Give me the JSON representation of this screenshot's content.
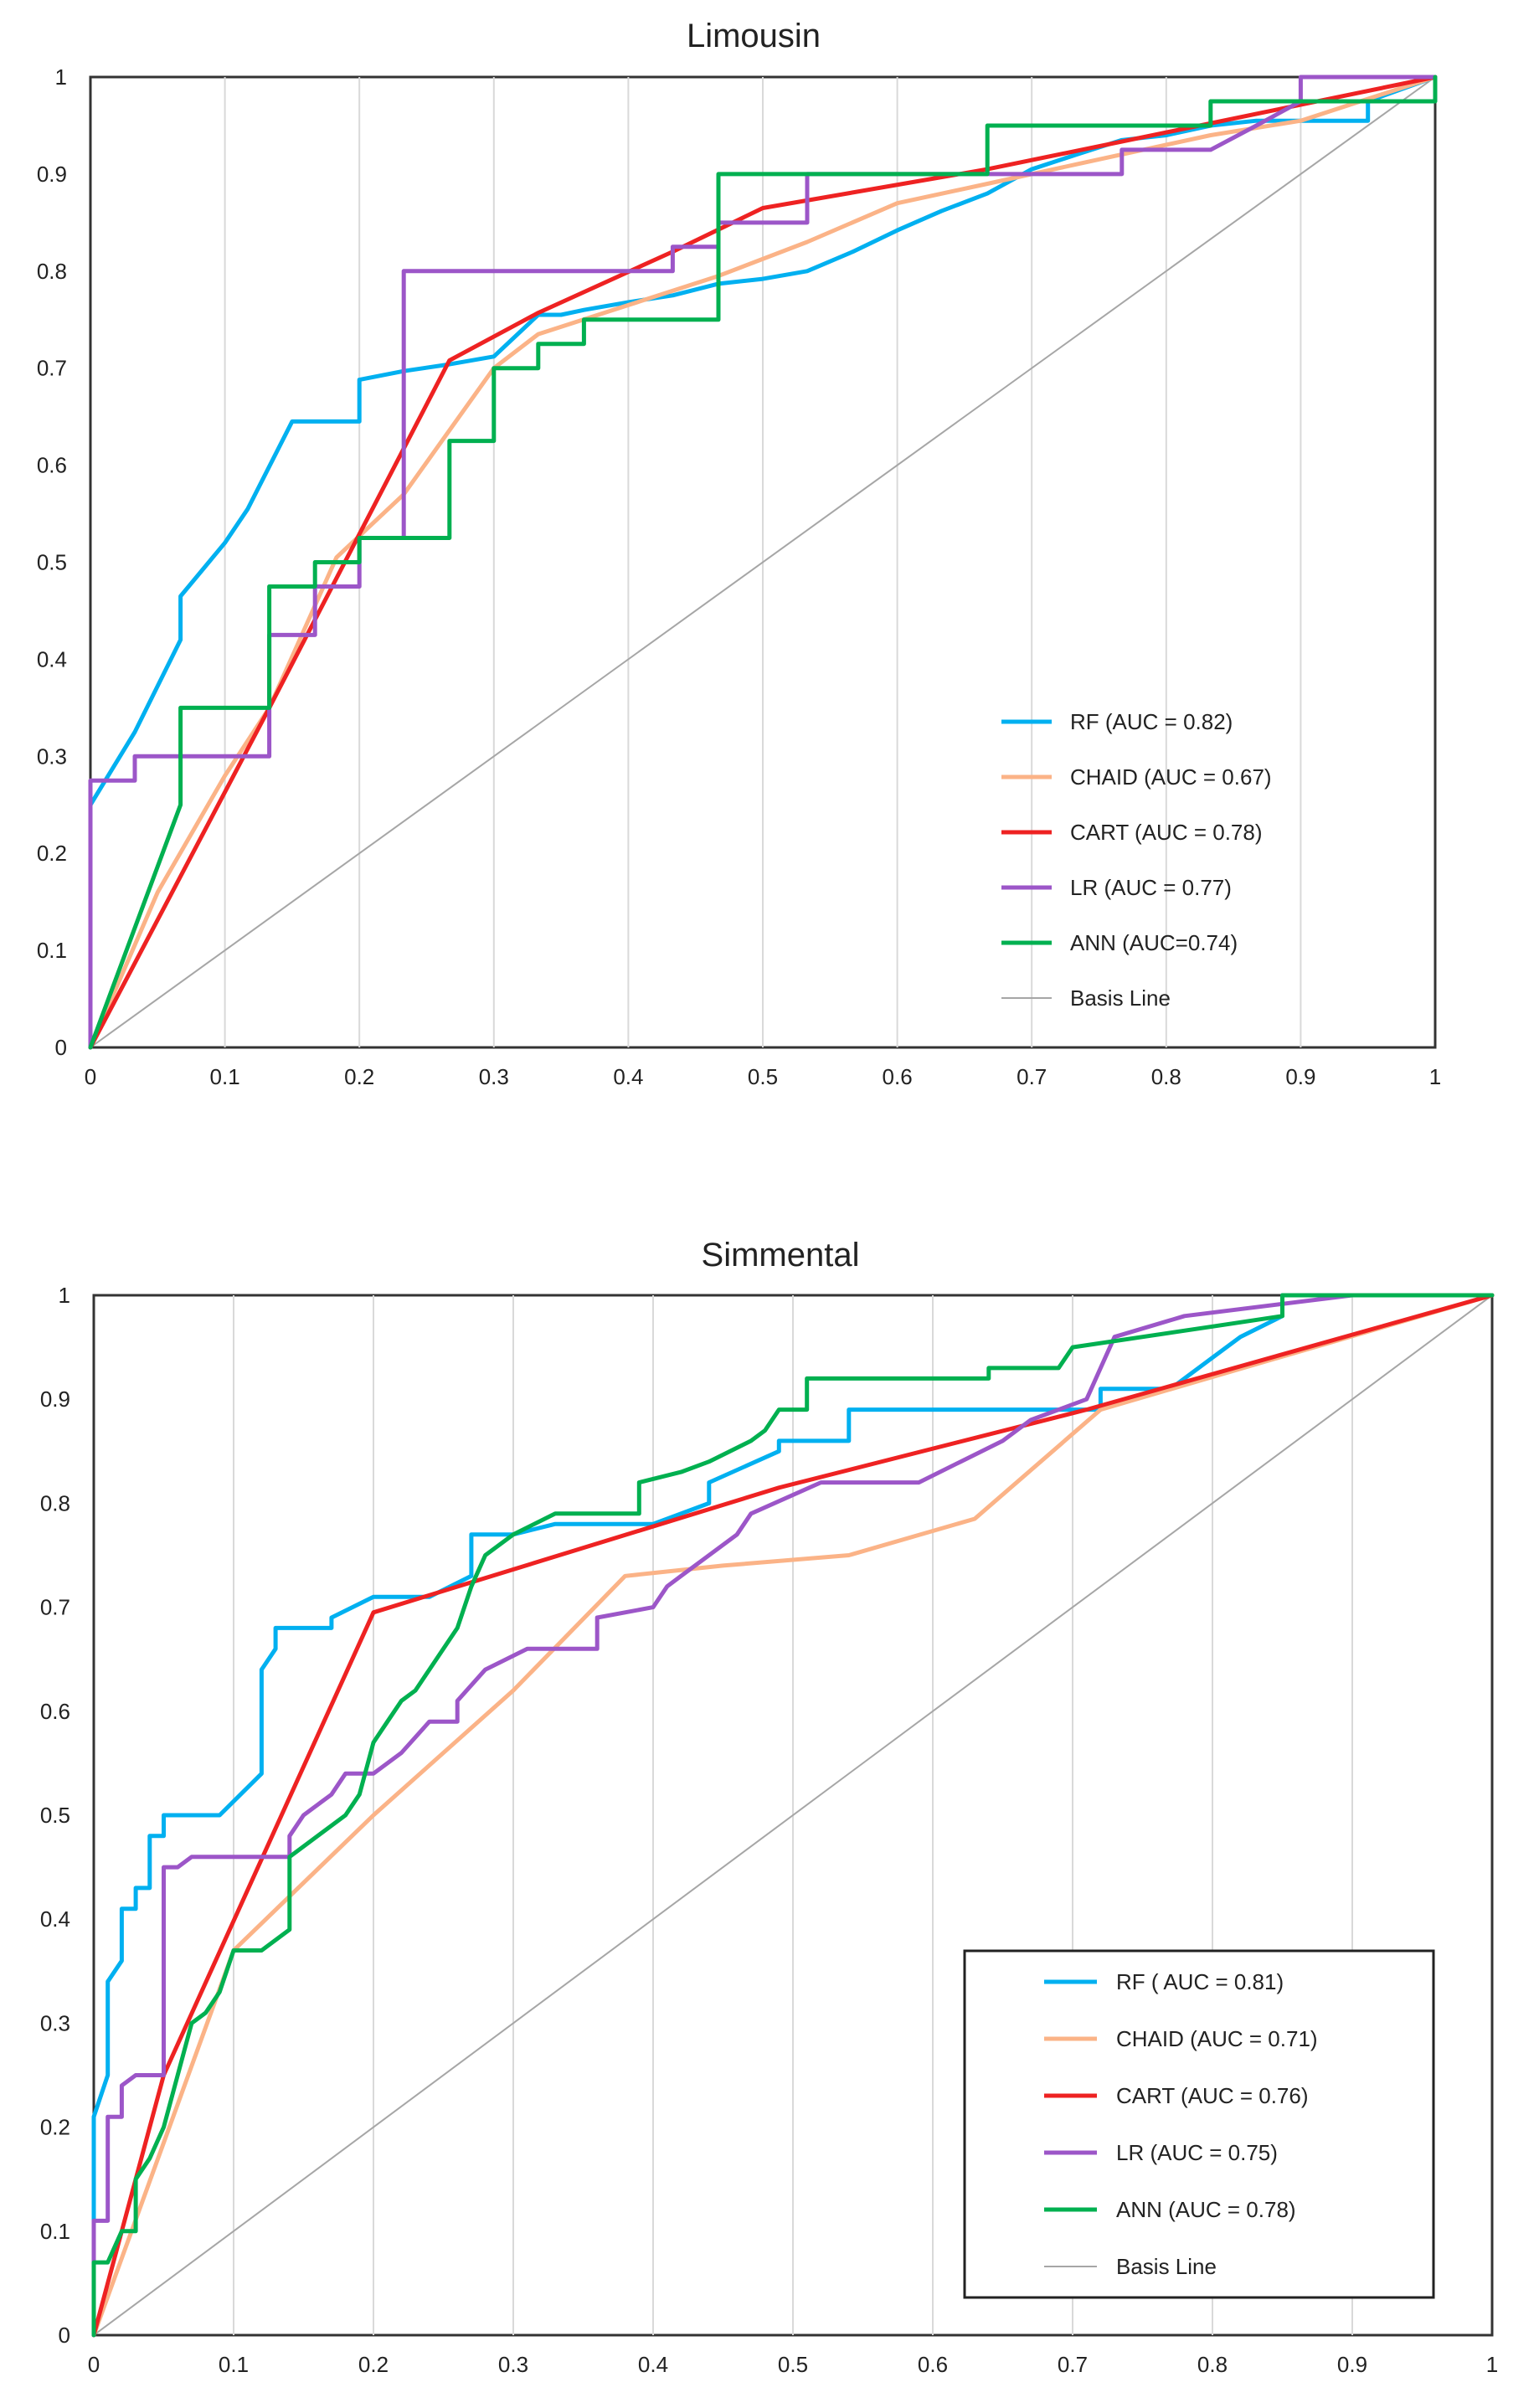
{
  "chart_data": [
    {
      "type": "line",
      "title": "Limousin",
      "xlim": [
        0,
        1
      ],
      "ylim": [
        0,
        1
      ],
      "grid": true,
      "legend_position": "bottom-right",
      "legend_box": false,
      "x_ticks": [
        "0",
        "0.1",
        "0.2",
        "0.3",
        "0.4",
        "0.5",
        "0.6",
        "0.7",
        "0.8",
        "0.9",
        "1"
      ],
      "y_ticks": [
        "0",
        "0.1",
        "0.2",
        "0.3",
        "0.4",
        "0.5",
        "0.6",
        "0.7",
        "0.8",
        "0.9",
        "1"
      ],
      "series": [
        {
          "name": "RF (AUC = 0.82)",
          "color": "#00b0f0",
          "x": [
            0,
            0,
            0.033,
            0.067,
            0.067,
            0.1,
            0.117,
            0.15,
            0.167,
            0.2,
            0.2,
            0.233,
            0.267,
            0.3,
            0.333,
            0.35,
            0.367,
            0.4,
            0.433,
            0.467,
            0.5,
            0.533,
            0.567,
            0.6,
            0.633,
            0.667,
            0.7,
            0.733,
            0.767,
            0.8,
            0.833,
            0.867,
            0.9,
            0.933,
            0.95,
            0.95,
            1
          ],
          "y": [
            0,
            0.25,
            0.325,
            0.42,
            0.465,
            0.52,
            0.555,
            0.645,
            0.645,
            0.645,
            0.688,
            0.697,
            0.704,
            0.712,
            0.755,
            0.755,
            0.76,
            0.768,
            0.775,
            0.787,
            0.792,
            0.8,
            0.82,
            0.842,
            0.862,
            0.88,
            0.905,
            0.92,
            0.935,
            0.94,
            0.95,
            0.955,
            0.955,
            0.955,
            0.955,
            0.975,
            1
          ]
        },
        {
          "name": "CHAID (AUC = 0.67)",
          "color": "#fbb387",
          "x": [
            0,
            0.05,
            0.1,
            0.133,
            0.183,
            0.233,
            0.3,
            0.333,
            0.4,
            0.467,
            0.533,
            0.6,
            0.667,
            0.733,
            0.833,
            0.9,
            1
          ],
          "y": [
            0,
            0.16,
            0.28,
            0.35,
            0.505,
            0.57,
            0.7,
            0.735,
            0.765,
            0.795,
            0.83,
            0.87,
            0.89,
            0.91,
            0.94,
            0.955,
            1
          ]
        },
        {
          "name": "CART (AUC = 0.78)",
          "color": "#ee2222",
          "x": [
            0,
            0.133,
            0.267,
            0.333,
            0.433,
            0.5,
            0.667,
            1
          ],
          "y": [
            0,
            0.35,
            0.708,
            0.757,
            0.82,
            0.865,
            0.905,
            1
          ]
        },
        {
          "name": "LR (AUC = 0.77)",
          "color": "#9c56c8",
          "x": [
            0,
            0,
            0.033,
            0.033,
            0.133,
            0.133,
            0.167,
            0.167,
            0.2,
            0.2,
            0.233,
            0.233,
            0.433,
            0.433,
            0.467,
            0.467,
            0.533,
            0.533,
            0.7,
            0.767,
            0.767,
            0.833,
            0.867,
            0.9,
            0.9,
            1
          ],
          "y": [
            0,
            0.275,
            0.275,
            0.3,
            0.3,
            0.425,
            0.425,
            0.475,
            0.475,
            0.525,
            0.525,
            0.8,
            0.8,
            0.825,
            0.825,
            0.85,
            0.85,
            0.9,
            0.9,
            0.9,
            0.925,
            0.925,
            0.95,
            0.975,
            1,
            1
          ]
        },
        {
          "name": "ANN (AUC=0.74)",
          "color": "#00b050",
          "x": [
            0,
            0.067,
            0.067,
            0.133,
            0.133,
            0.167,
            0.167,
            0.2,
            0.2,
            0.267,
            0.267,
            0.3,
            0.3,
            0.333,
            0.333,
            0.367,
            0.367,
            0.467,
            0.467,
            0.667,
            0.667,
            0.833,
            0.833,
            1,
            1
          ],
          "y": [
            0,
            0.25,
            0.35,
            0.35,
            0.475,
            0.475,
            0.5,
            0.5,
            0.525,
            0.525,
            0.625,
            0.625,
            0.7,
            0.7,
            0.725,
            0.725,
            0.75,
            0.75,
            0.9,
            0.9,
            0.95,
            0.95,
            0.975,
            0.975,
            1
          ]
        },
        {
          "name": "Basis Line",
          "color": "#a6a6a6",
          "x": [
            0,
            1
          ],
          "y": [
            0,
            1
          ]
        }
      ]
    },
    {
      "type": "line",
      "title": "Simmental",
      "xlim": [
        0,
        1
      ],
      "ylim": [
        0,
        1
      ],
      "grid": true,
      "legend_position": "bottom-right",
      "legend_box": true,
      "x_ticks": [
        "0",
        "0.1",
        "0.2",
        "0.3",
        "0.4",
        "0.5",
        "0.6",
        "0.7",
        "0.8",
        "0.9",
        "1"
      ],
      "y_ticks": [
        "0",
        "0.1",
        "0.2",
        "0.3",
        "0.4",
        "0.5",
        "0.6",
        "0.7",
        "0.8",
        "0.9",
        "1"
      ],
      "series": [
        {
          "name": "RF ( AUC = 0.81)",
          "color": "#00b0f0",
          "x": [
            0,
            0,
            0.01,
            0.01,
            0.02,
            0.02,
            0.03,
            0.03,
            0.04,
            0.04,
            0.05,
            0.05,
            0.06,
            0.06,
            0.07,
            0.09,
            0.12,
            0.12,
            0.13,
            0.13,
            0.17,
            0.17,
            0.2,
            0.24,
            0.27,
            0.27,
            0.3,
            0.33,
            0.36,
            0.4,
            0.44,
            0.44,
            0.49,
            0.49,
            0.54,
            0.54,
            0.66,
            0.66,
            0.72,
            0.72,
            0.77,
            0.8,
            0.82,
            0.85,
            0.85,
            1
          ],
          "y": [
            0,
            0.21,
            0.25,
            0.34,
            0.36,
            0.41,
            0.41,
            0.43,
            0.43,
            0.48,
            0.48,
            0.5,
            0.5,
            0.5,
            0.5,
            0.5,
            0.54,
            0.64,
            0.66,
            0.68,
            0.68,
            0.69,
            0.71,
            0.71,
            0.73,
            0.77,
            0.77,
            0.78,
            0.78,
            0.78,
            0.8,
            0.82,
            0.85,
            0.86,
            0.86,
            0.89,
            0.89,
            0.89,
            0.89,
            0.91,
            0.91,
            0.94,
            0.96,
            0.98,
            1,
            1
          ]
        },
        {
          "name": "CHAID (AUC = 0.71)",
          "color": "#fbb387",
          "x": [
            0,
            0.1,
            0.2,
            0.3,
            0.38,
            0.45,
            0.54,
            0.63,
            0.72,
            1
          ],
          "y": [
            0,
            0.37,
            0.5,
            0.62,
            0.73,
            0.74,
            0.75,
            0.785,
            0.89,
            1
          ]
        },
        {
          "name": "CART (AUC = 0.76)",
          "color": "#ee2222",
          "x": [
            0,
            0.05,
            0.2,
            0.49,
            0.71,
            1
          ],
          "y": [
            0,
            0.25,
            0.695,
            0.815,
            0.89,
            1
          ]
        },
        {
          "name": "LR (AUC = 0.75)",
          "color": "#9c56c8",
          "x": [
            0,
            0,
            0.01,
            0.01,
            0.02,
            0.02,
            0.03,
            0.05,
            0.05,
            0.06,
            0.07,
            0.14,
            0.14,
            0.15,
            0.16,
            0.17,
            0.18,
            0.2,
            0.21,
            0.22,
            0.24,
            0.26,
            0.26,
            0.28,
            0.31,
            0.36,
            0.36,
            0.4,
            0.41,
            0.42,
            0.46,
            0.47,
            0.52,
            0.59,
            0.62,
            0.65,
            0.67,
            0.71,
            0.72,
            0.73,
            0.78,
            0.9
          ],
          "y": [
            0,
            0.11,
            0.11,
            0.21,
            0.21,
            0.24,
            0.25,
            0.25,
            0.45,
            0.45,
            0.46,
            0.46,
            0.48,
            0.5,
            0.51,
            0.52,
            0.54,
            0.54,
            0.55,
            0.56,
            0.59,
            0.59,
            0.61,
            0.64,
            0.66,
            0.66,
            0.69,
            0.7,
            0.72,
            0.73,
            0.77,
            0.79,
            0.82,
            0.82,
            0.84,
            0.86,
            0.88,
            0.9,
            0.93,
            0.96,
            0.98,
            1
          ]
        },
        {
          "name": "ANN (AUC = 0.78)",
          "color": "#00b050",
          "x": [
            0,
            0,
            0.01,
            0.02,
            0.03,
            0.03,
            0.04,
            0.05,
            0.06,
            0.07,
            0.08,
            0.09,
            0.1,
            0.12,
            0.14,
            0.14,
            0.18,
            0.19,
            0.2,
            0.21,
            0.22,
            0.23,
            0.24,
            0.26,
            0.27,
            0.28,
            0.3,
            0.33,
            0.39,
            0.39,
            0.42,
            0.44,
            0.47,
            0.48,
            0.49,
            0.51,
            0.51,
            0.64,
            0.64,
            0.69,
            0.7,
            0.8,
            0.85,
            0.85,
            1
          ],
          "y": [
            0,
            0.07,
            0.07,
            0.1,
            0.1,
            0.15,
            0.17,
            0.2,
            0.25,
            0.3,
            0.31,
            0.33,
            0.37,
            0.37,
            0.39,
            0.46,
            0.5,
            0.52,
            0.57,
            0.59,
            0.61,
            0.62,
            0.64,
            0.68,
            0.72,
            0.75,
            0.77,
            0.79,
            0.79,
            0.82,
            0.83,
            0.84,
            0.86,
            0.87,
            0.89,
            0.89,
            0.92,
            0.92,
            0.93,
            0.93,
            0.95,
            0.97,
            0.98,
            1,
            1
          ]
        },
        {
          "name": "Basis Line",
          "color": "#a6a6a6",
          "x": [
            0,
            1
          ],
          "y": [
            0,
            1
          ]
        }
      ]
    }
  ]
}
